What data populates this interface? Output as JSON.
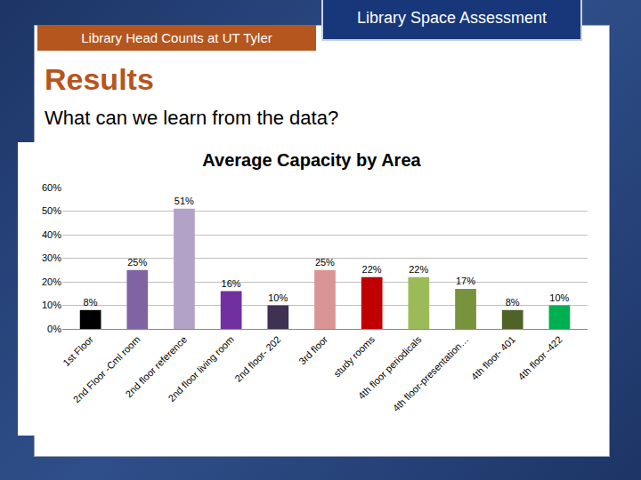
{
  "slide": {
    "tab": "Library Head Counts at UT Tyler",
    "banner": "Library Space Assessment",
    "heading": "Results",
    "subheading": "What can we learn from the data?"
  },
  "chart_data": {
    "type": "bar",
    "title": "Average Capacity by Area",
    "categories": [
      "1st Floor",
      "2nd Floor -Cml room",
      "2nd floor reference",
      "2nd floor living room",
      "2nd floor- 202",
      "3rd floor",
      "study rooms",
      "4th floor periodicals",
      "4th floor-presentation…",
      "4th floor- 401",
      "4th floor -422"
    ],
    "values": [
      8,
      25,
      51,
      16,
      10,
      25,
      22,
      22,
      17,
      8,
      10
    ],
    "value_labels": [
      "8%",
      "25%",
      "51%",
      "16%",
      "10%",
      "25%",
      "22%",
      "22%",
      "17%",
      "8%",
      "10%"
    ],
    "colors": [
      "#000000",
      "#8064a2",
      "#b3a2c7",
      "#7030a0",
      "#3f3151",
      "#d99594",
      "#c00000",
      "#9bbb59",
      "#77933c",
      "#4f6228",
      "#00b050"
    ],
    "ylim": [
      0,
      60
    ],
    "yticks": [
      {
        "value": 0,
        "label": "0%"
      },
      {
        "value": 10,
        "label": "10%"
      },
      {
        "value": 20,
        "label": "20%"
      },
      {
        "value": 30,
        "label": "30%"
      },
      {
        "value": 40,
        "label": "40%"
      },
      {
        "value": 50,
        "label": "50%"
      },
      {
        "value": 60,
        "label": "60%"
      }
    ],
    "grid": true,
    "data_labels": true
  }
}
